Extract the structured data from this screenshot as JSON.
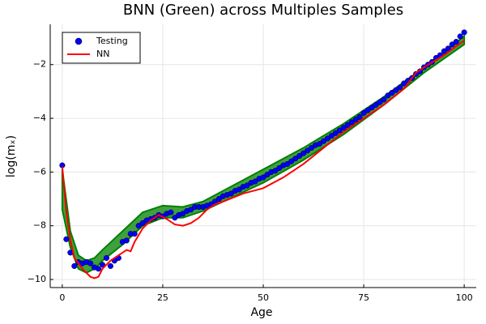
{
  "chart_data": {
    "type": "scatter-line",
    "title": "BNN (Green) across Multiples Samples",
    "x_label": "Age",
    "y_label": "log(mₓ)",
    "xlim": [
      -3,
      103
    ],
    "ylim": [
      -10.3,
      -0.5
    ],
    "xticks": [
      0,
      25,
      50,
      75,
      100
    ],
    "yticks": [
      {
        "value": -10,
        "label": "−10"
      },
      {
        "value": -8,
        "label": "−8"
      },
      {
        "value": -6,
        "label": "−6"
      },
      {
        "value": -4,
        "label": "−4"
      },
      {
        "value": -2,
        "label": "−2"
      }
    ],
    "grid": true,
    "legend": "top-left",
    "band": {
      "color": "#008000",
      "x": [
        0,
        2,
        4,
        6,
        8,
        10,
        15,
        20,
        25,
        30,
        35,
        40,
        50,
        60,
        70,
        80,
        90,
        100
      ],
      "lower": [
        -7.4,
        -8.8,
        -9.6,
        -9.75,
        -9.6,
        -9.3,
        -8.7,
        -8.0,
        -7.7,
        -7.7,
        -7.45,
        -7.1,
        -6.4,
        -5.55,
        -4.6,
        -3.5,
        -2.3,
        -1.25
      ],
      "upper": [
        -5.9,
        -8.2,
        -9.1,
        -9.3,
        -9.2,
        -8.9,
        -8.2,
        -7.5,
        -7.25,
        -7.3,
        -7.1,
        -6.7,
        -5.9,
        -5.1,
        -4.2,
        -3.2,
        -2.1,
        -0.95
      ]
    },
    "series": [
      {
        "name": "Testing",
        "kind": "scatter",
        "color": "#0000ff",
        "x": [
          0,
          1,
          2,
          3,
          4,
          5,
          6,
          7,
          8,
          9,
          10,
          11,
          12,
          13,
          14,
          15,
          16,
          17,
          18,
          19,
          20,
          21,
          22,
          23,
          24,
          25,
          26,
          27,
          28,
          29,
          30,
          31,
          32,
          33,
          34,
          35,
          36,
          37,
          38,
          39,
          40,
          41,
          42,
          43,
          44,
          45,
          46,
          47,
          48,
          49,
          50,
          51,
          52,
          53,
          54,
          55,
          56,
          57,
          58,
          59,
          60,
          61,
          62,
          63,
          64,
          65,
          66,
          67,
          68,
          69,
          70,
          71,
          72,
          73,
          74,
          75,
          76,
          77,
          78,
          79,
          80,
          81,
          82,
          83,
          84,
          85,
          86,
          87,
          88,
          89,
          90,
          91,
          92,
          93,
          94,
          95,
          96,
          97,
          98,
          99,
          100
        ],
        "values": [
          -5.75,
          -8.5,
          -9.0,
          -9.5,
          -9.35,
          -9.4,
          -9.35,
          -9.4,
          -9.55,
          -9.6,
          -9.45,
          -9.2,
          -9.5,
          -9.3,
          -9.2,
          -8.6,
          -8.55,
          -8.3,
          -8.3,
          -8.0,
          -7.9,
          -7.8,
          -7.75,
          -7.7,
          -7.6,
          -7.65,
          -7.55,
          -7.5,
          -7.7,
          -7.6,
          -7.55,
          -7.45,
          -7.4,
          -7.3,
          -7.3,
          -7.3,
          -7.25,
          -7.2,
          -7.1,
          -7.0,
          -6.9,
          -6.85,
          -6.8,
          -6.7,
          -6.65,
          -6.55,
          -6.5,
          -6.4,
          -6.35,
          -6.25,
          -6.2,
          -6.1,
          -6.0,
          -5.95,
          -5.85,
          -5.75,
          -5.7,
          -5.6,
          -5.5,
          -5.4,
          -5.3,
          -5.2,
          -5.1,
          -5.0,
          -4.95,
          -4.85,
          -4.75,
          -4.65,
          -4.55,
          -4.45,
          -4.35,
          -4.25,
          -4.15,
          -4.05,
          -3.95,
          -3.8,
          -3.7,
          -3.6,
          -3.5,
          -3.4,
          -3.3,
          -3.15,
          -3.05,
          -2.95,
          -2.85,
          -2.7,
          -2.6,
          -2.5,
          -2.35,
          -2.25,
          -2.1,
          -2.0,
          -1.9,
          -1.75,
          -1.65,
          -1.5,
          -1.4,
          -1.25,
          -1.15,
          -0.95,
          -0.8
        ]
      },
      {
        "name": "NN",
        "kind": "line",
        "color": "#ff0000",
        "x": [
          0,
          1,
          2,
          3,
          5,
          7,
          8,
          9,
          10,
          12,
          14,
          16,
          17,
          18,
          20,
          22,
          24,
          26,
          28,
          30,
          32,
          34,
          36,
          38,
          40,
          45,
          50,
          55,
          60,
          65,
          70,
          75,
          80,
          85,
          88,
          90,
          95,
          100
        ],
        "values": [
          -5.8,
          -7.5,
          -8.5,
          -9.2,
          -9.6,
          -9.9,
          -9.95,
          -9.9,
          -9.6,
          -9.3,
          -9.1,
          -8.9,
          -8.95,
          -8.6,
          -8.1,
          -7.8,
          -7.6,
          -7.75,
          -7.95,
          -8.0,
          -7.9,
          -7.7,
          -7.4,
          -7.2,
          -7.1,
          -6.8,
          -6.6,
          -6.2,
          -5.7,
          -5.1,
          -4.5,
          -4.0,
          -3.5,
          -2.9,
          -2.3,
          -2.1,
          -1.65,
          -1.1
        ]
      }
    ]
  }
}
